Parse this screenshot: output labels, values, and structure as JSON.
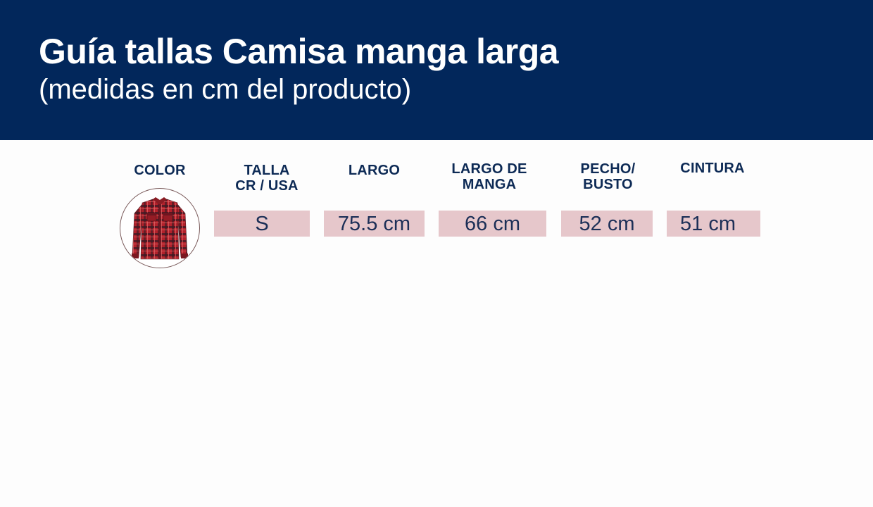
{
  "header": {
    "title": "Guía tallas Camisa manga larga",
    "subtitle": "(medidas en cm del producto)",
    "background_color": "#02275b"
  },
  "table": {
    "headers": {
      "color": "COLOR",
      "size": "TALLA\nCR / USA",
      "length": "LARGO",
      "sleeve_length": "LARGO DE\nMANGA",
      "chest": "PECHO/\nBUSTO",
      "waist": "CINTURA"
    },
    "rows": [
      {
        "color_icon": "red-plaid-long-sleeve-shirt-icon",
        "size": "S",
        "length": "75.5 cm",
        "sleeve_length": "66 cm",
        "chest": "52 cm",
        "waist": "51 cm"
      }
    ],
    "cell_color": "#e6c7cb",
    "header_text_color": "#0d2a55"
  }
}
